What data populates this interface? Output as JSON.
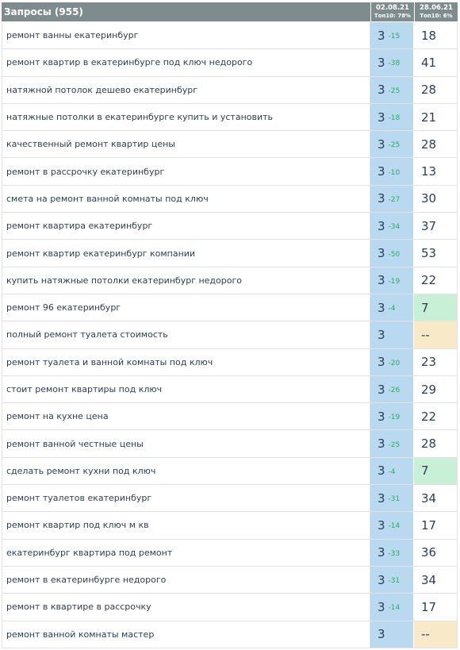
{
  "header": {
    "title": "Запросы (955)",
    "col1_date": "02.08.21",
    "col1_top": "Топ10: 78%",
    "col2_date": "28.06.21",
    "col2_top": "Топ10: 6%"
  },
  "colors": {
    "header_bg": "#7f8c8d",
    "current_col_bg": "#b9d9f0",
    "delta_green": "#27ae60",
    "highlight_green": "#c8f0d6",
    "highlight_cream": "#f8e9c8"
  },
  "rows": [
    {
      "query": "ремонт ванны екатеринбург",
      "pos": "3",
      "delta": "-15",
      "prev": "18",
      "highlight": ""
    },
    {
      "query": "ремонт квартир в екатеринбурге под ключ недорого",
      "pos": "3",
      "delta": "-38",
      "prev": "41",
      "highlight": ""
    },
    {
      "query": "натяжной потолок дешево екатеринбург",
      "pos": "3",
      "delta": "-25",
      "prev": "28",
      "highlight": ""
    },
    {
      "query": "натяжные потолки в екатеринбурге купить и установить",
      "pos": "3",
      "delta": "-18",
      "prev": "21",
      "highlight": ""
    },
    {
      "query": "качественный ремонт квартир цены",
      "pos": "3",
      "delta": "-25",
      "prev": "28",
      "highlight": ""
    },
    {
      "query": "ремонт в рассрочку екатеринбург",
      "pos": "3",
      "delta": "-10",
      "prev": "13",
      "highlight": ""
    },
    {
      "query": "смета на ремонт ванной комнаты под ключ",
      "pos": "3",
      "delta": "-27",
      "prev": "30",
      "highlight": ""
    },
    {
      "query": "ремонт квартира екатеринбург",
      "pos": "3",
      "delta": "-34",
      "prev": "37",
      "highlight": ""
    },
    {
      "query": "ремонт квартир екатеринбург компании",
      "pos": "3",
      "delta": "-50",
      "prev": "53",
      "highlight": ""
    },
    {
      "query": "купить натяжные потолки екатеринбург недорого",
      "pos": "3",
      "delta": "-19",
      "prev": "22",
      "highlight": ""
    },
    {
      "query": "ремонт 96 екатеринбург",
      "pos": "3",
      "delta": "-4",
      "prev": "7",
      "highlight": "green"
    },
    {
      "query": "полный ремонт туалета стоимость",
      "pos": "3",
      "delta": "",
      "prev": "--",
      "highlight": "cream"
    },
    {
      "query": "ремонт туалета и ванной комнаты под ключ",
      "pos": "3",
      "delta": "-20",
      "prev": "23",
      "highlight": ""
    },
    {
      "query": "стоит ремонт квартиры под ключ",
      "pos": "3",
      "delta": "-26",
      "prev": "29",
      "highlight": ""
    },
    {
      "query": "ремонт на кухне цена",
      "pos": "3",
      "delta": "-19",
      "prev": "22",
      "highlight": ""
    },
    {
      "query": "ремонт ванной честные цены",
      "pos": "3",
      "delta": "-25",
      "prev": "28",
      "highlight": ""
    },
    {
      "query": "сделать ремонт кухни под ключ",
      "pos": "3",
      "delta": "-4",
      "prev": "7",
      "highlight": "green"
    },
    {
      "query": "ремонт туалетов екатеринбург",
      "pos": "3",
      "delta": "-31",
      "prev": "34",
      "highlight": ""
    },
    {
      "query": "ремонт квартир под ключ м кв",
      "pos": "3",
      "delta": "-14",
      "prev": "17",
      "highlight": ""
    },
    {
      "query": "екатеринбург квартира под ремонт",
      "pos": "3",
      "delta": "-33",
      "prev": "36",
      "highlight": ""
    },
    {
      "query": "ремонт в екатеринбурге недорого",
      "pos": "3",
      "delta": "-31",
      "prev": "34",
      "highlight": ""
    },
    {
      "query": "ремонт в квартире в рассрочку",
      "pos": "3",
      "delta": "-14",
      "prev": "17",
      "highlight": ""
    },
    {
      "query": "ремонт ванной комнаты мастер",
      "pos": "3",
      "delta": "",
      "prev": "--",
      "highlight": "cream"
    }
  ]
}
